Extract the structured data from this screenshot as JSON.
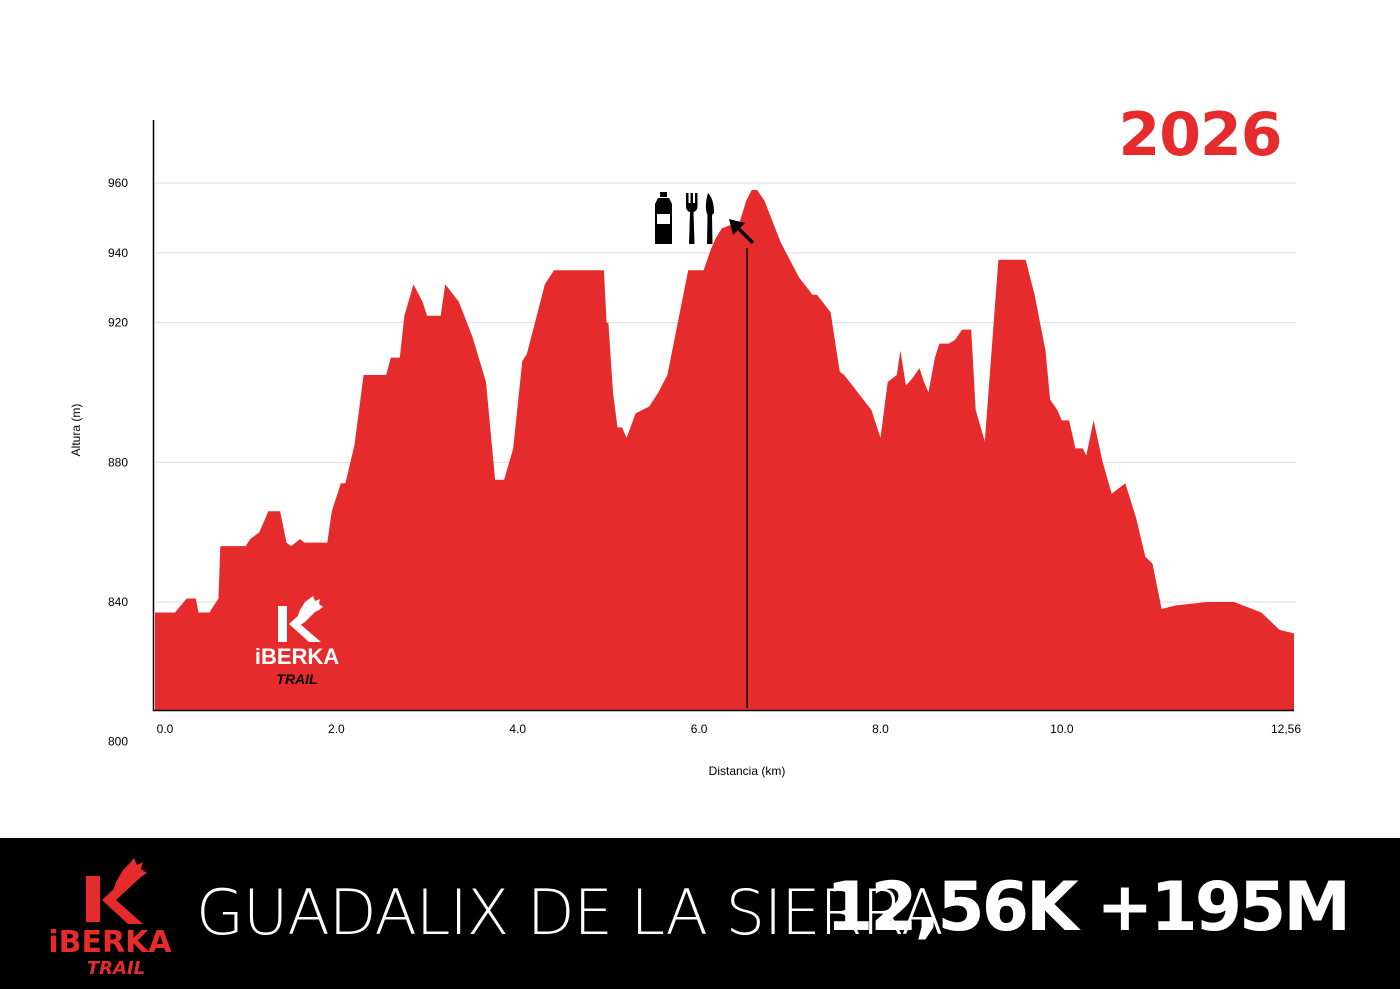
{
  "year": "2026",
  "race": {
    "name": "GUADALIX DE LA SIERRA",
    "stats": "12,56K +195M"
  },
  "brand": {
    "name": "iBERKA",
    "subtitle": "TRAIL",
    "accent": "#e52b2b",
    "background": "#000000"
  },
  "aid_station": {
    "km": 6.53,
    "icons": [
      "water-bottle-icon",
      "fork-icon",
      "knife-icon",
      "arrow-up-left-icon"
    ]
  },
  "chart_data": {
    "type": "area",
    "title": "",
    "xlabel": "Distancia (km)",
    "ylabel": "Altura (m)",
    "xlim": [
      0,
      12.56
    ],
    "ylim": [
      795,
      975
    ],
    "grid": "horizontal",
    "xticks": [
      {
        "value": 0,
        "label": "0.0"
      },
      {
        "value": 2,
        "label": "2.0"
      },
      {
        "value": 4,
        "label": "4.0"
      },
      {
        "value": 6,
        "label": "6.0"
      },
      {
        "value": 8,
        "label": "8.0"
      },
      {
        "value": 10,
        "label": "10.0"
      },
      {
        "value": 12.56,
        "label": "12,56"
      }
    ],
    "yticks": [
      {
        "value": 800,
        "label": "800"
      },
      {
        "value": 840,
        "label": "840"
      },
      {
        "value": 880,
        "label": "880"
      },
      {
        "value": 920,
        "label": "920"
      },
      {
        "value": 940,
        "label": "940"
      },
      {
        "value": 960,
        "label": "960"
      }
    ],
    "series": [
      {
        "color": "#e52b2b",
        "x": [
          0,
          0.22,
          0.35,
          0.45,
          0.48,
          0.6,
          0.7,
          0.72,
          0.85,
          1.0,
          1.05,
          1.15,
          1.25,
          1.3,
          1.38,
          1.45,
          1.5,
          1.6,
          1.65,
          1.8,
          1.9,
          1.95,
          2.05,
          2.1,
          2.2,
          2.3,
          2.45,
          2.55,
          2.6,
          2.7,
          2.75,
          2.85,
          2.95,
          3.0,
          3.15,
          3.2,
          3.35,
          3.5,
          3.65,
          3.75,
          3.8,
          3.85,
          3.95,
          4.05,
          4.1,
          4.3,
          4.4,
          4.55,
          4.65,
          4.85,
          4.95,
          4.98,
          5.0,
          5.05,
          5.1,
          5.15,
          5.2,
          5.3,
          5.45,
          5.55,
          5.65,
          5.75,
          5.88,
          6.05,
          6.13,
          6.18,
          6.25,
          6.45,
          6.52,
          6.58,
          6.64,
          6.72,
          6.9,
          7.1,
          7.25,
          7.3,
          7.45,
          7.55,
          7.6,
          7.75,
          7.9,
          8.0,
          8.08,
          8.18,
          8.22,
          8.28,
          8.35,
          8.43,
          8.48,
          8.53,
          8.6,
          8.65,
          8.75,
          8.82,
          8.9,
          9.0,
          9.05,
          9.15,
          9.3,
          9.5,
          9.6,
          9.7,
          9.82,
          9.87,
          9.95,
          10.0,
          10.08,
          10.15,
          10.23,
          10.27,
          10.35,
          10.45,
          10.55,
          10.65,
          10.7,
          10.82,
          10.92,
          11.0,
          11.1,
          11.25,
          11.6,
          11.9,
          12.0,
          12.2,
          12.4,
          12.56
        ],
        "y": [
          837,
          837,
          841,
          841,
          837,
          837,
          841,
          856,
          856,
          856,
          858,
          860,
          866,
          866,
          866,
          857,
          856,
          858,
          857,
          857,
          857,
          866,
          874,
          874,
          885,
          905,
          905,
          905,
          910,
          910,
          922,
          931,
          926,
          922,
          922,
          931,
          926,
          916,
          903,
          875,
          875,
          875,
          884,
          909,
          911,
          931,
          935,
          935,
          935,
          935,
          935,
          920,
          920,
          900,
          890,
          890,
          887,
          894,
          896,
          900,
          905,
          918,
          935,
          935,
          941,
          944,
          947,
          949,
          955,
          958,
          958,
          955,
          943,
          933,
          928,
          928,
          923,
          906,
          905,
          900,
          895,
          887,
          903,
          905,
          912,
          902,
          904,
          907,
          903,
          900,
          910,
          914,
          914,
          915,
          918,
          918,
          895,
          886,
          938,
          938,
          938,
          928,
          912,
          898,
          895,
          892,
          892,
          884,
          884,
          882,
          892,
          880,
          871,
          873,
          874,
          864,
          853,
          851,
          838,
          839,
          840,
          840,
          839,
          837,
          832,
          831
        ]
      }
    ]
  }
}
